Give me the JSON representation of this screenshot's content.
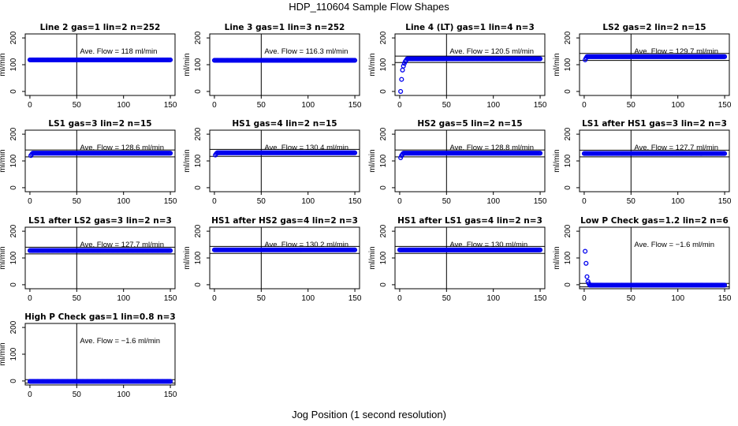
{
  "title": "HDP_110604  Sample Flow Shapes",
  "xlabel": "Jog Position (1 second resolution)",
  "ylabel": "ml/min",
  "colors": {
    "points": "#0000ee",
    "axes": "#000000"
  },
  "chart_data": [
    {
      "type": "scatter",
      "title": "Line 2 gas=1 lin=2 n=252",
      "annotation": "Ave. Flow =  118  ml/min",
      "ylim": [
        -15,
        215
      ],
      "xlim": [
        -5,
        155
      ],
      "yticks": [
        0,
        100,
        200
      ],
      "xticks": [
        0,
        50,
        100,
        150
      ],
      "vline": 50,
      "hlines": [],
      "series": [
        {
          "x_range": [
            0,
            150
          ],
          "y": 118,
          "startup": []
        }
      ]
    },
    {
      "type": "scatter",
      "title": "Line 3 gas=1 lin=3 n=252",
      "annotation": "Ave. Flow =  116.3  ml/min",
      "ylim": [
        -15,
        215
      ],
      "xlim": [
        -5,
        155
      ],
      "yticks": [
        0,
        100,
        200
      ],
      "xticks": [
        0,
        50,
        100,
        150
      ],
      "vline": 50,
      "hlines": [],
      "series": [
        {
          "x_range": [
            0,
            150
          ],
          "y": 116.3,
          "startup": []
        }
      ]
    },
    {
      "type": "scatter",
      "title": "Line 4 (LT) gas=1 lin=4 n=3",
      "annotation": "Ave. Flow =  120.5  ml/min",
      "ylim": [
        -15,
        215
      ],
      "xlim": [
        -5,
        155
      ],
      "yticks": [
        0,
        100,
        200
      ],
      "xticks": [
        0,
        50,
        100,
        150
      ],
      "vline": 50,
      "hlines": [
        132,
        108
      ],
      "series": [
        {
          "x_range": [
            8,
            150
          ],
          "y": 122,
          "startup": [
            [
              1,
              0
            ],
            [
              2,
              45
            ],
            [
              3,
              80
            ],
            [
              4,
              95
            ],
            [
              5,
              105
            ],
            [
              6,
              112
            ],
            [
              7,
              117
            ]
          ]
        }
      ]
    },
    {
      "type": "scatter",
      "title": "LS2 gas=2 lin=2 n=15",
      "annotation": "Ave. Flow =  129.7  ml/min",
      "ylim": [
        -15,
        215
      ],
      "xlim": [
        -5,
        155
      ],
      "yticks": [
        0,
        100,
        200
      ],
      "xticks": [
        0,
        50,
        100,
        150
      ],
      "vline": 50,
      "hlines": [
        142,
        116
      ],
      "series": [
        {
          "x_range": [
            3,
            150
          ],
          "y": 130,
          "startup": [
            [
              1,
              118
            ],
            [
              2,
              125
            ]
          ]
        }
      ]
    },
    {
      "type": "scatter",
      "title": "LS1 gas=3 lin=2 n=15",
      "annotation": "Ave. Flow =  128.6  ml/min",
      "ylim": [
        -15,
        215
      ],
      "xlim": [
        -5,
        155
      ],
      "yticks": [
        0,
        100,
        200
      ],
      "xticks": [
        0,
        50,
        100,
        150
      ],
      "vline": 50,
      "hlines": [
        141,
        115
      ],
      "series": [
        {
          "x_range": [
            3,
            150
          ],
          "y": 129,
          "startup": [
            [
              1,
              120
            ],
            [
              2,
              125
            ]
          ]
        }
      ]
    },
    {
      "type": "scatter",
      "title": "HS1 gas=4 lin=2 n=15",
      "annotation": "Ave. Flow =  130.4  ml/min",
      "ylim": [
        -15,
        215
      ],
      "xlim": [
        -5,
        155
      ],
      "yticks": [
        0,
        100,
        200
      ],
      "xticks": [
        0,
        50,
        100,
        150
      ],
      "vline": 50,
      "hlines": [
        143,
        117
      ],
      "series": [
        {
          "x_range": [
            3,
            150
          ],
          "y": 130.5,
          "startup": [
            [
              1,
              122
            ],
            [
              2,
              127
            ]
          ]
        }
      ]
    },
    {
      "type": "scatter",
      "title": "HS2 gas=5 lin=2 n=15",
      "annotation": "Ave. Flow =  128.8  ml/min",
      "ylim": [
        -15,
        215
      ],
      "xlim": [
        -5,
        155
      ],
      "yticks": [
        0,
        100,
        200
      ],
      "xticks": [
        0,
        50,
        100,
        150
      ],
      "vline": 50,
      "hlines": [
        141,
        115
      ],
      "series": [
        {
          "x_range": [
            4,
            150
          ],
          "y": 129,
          "startup": [
            [
              1,
              112
            ],
            [
              2,
              120
            ],
            [
              3,
              125
            ]
          ]
        }
      ]
    },
    {
      "type": "scatter",
      "title": "LS1 after HS1 gas=3 lin=2 n=3",
      "annotation": "Ave. Flow =  127.7  ml/min",
      "ylim": [
        -15,
        215
      ],
      "xlim": [
        -5,
        155
      ],
      "yticks": [
        0,
        100,
        200
      ],
      "xticks": [
        0,
        50,
        100,
        150
      ],
      "vline": 50,
      "hlines": [
        140,
        115
      ],
      "series": [
        {
          "x_range": [
            0,
            150
          ],
          "y": 127.7,
          "startup": []
        }
      ]
    },
    {
      "type": "scatter",
      "title": "LS1 after LS2 gas=3 lin=2 n=3",
      "annotation": "Ave. Flow =  127.7  ml/min",
      "ylim": [
        -15,
        215
      ],
      "xlim": [
        -5,
        155
      ],
      "yticks": [
        0,
        100,
        200
      ],
      "xticks": [
        0,
        50,
        100,
        150
      ],
      "vline": 50,
      "hlines": [
        140,
        115
      ],
      "series": [
        {
          "x_range": [
            0,
            150
          ],
          "y": 127.7,
          "startup": []
        }
      ]
    },
    {
      "type": "scatter",
      "title": "HS1 after HS2 gas=4 lin=2 n=3",
      "annotation": "Ave. Flow =  130.2  ml/min",
      "ylim": [
        -15,
        215
      ],
      "xlim": [
        -5,
        155
      ],
      "yticks": [
        0,
        100,
        200
      ],
      "xticks": [
        0,
        50,
        100,
        150
      ],
      "vline": 50,
      "hlines": [
        143,
        117
      ],
      "series": [
        {
          "x_range": [
            0,
            150
          ],
          "y": 130.2,
          "startup": []
        }
      ]
    },
    {
      "type": "scatter",
      "title": "HS1 after LS1 gas=4 lin=2 n=3",
      "annotation": "Ave. Flow =  130  ml/min",
      "ylim": [
        -15,
        215
      ],
      "xlim": [
        -5,
        155
      ],
      "yticks": [
        0,
        100,
        200
      ],
      "xticks": [
        0,
        50,
        100,
        150
      ],
      "vline": 50,
      "hlines": [
        143,
        117
      ],
      "series": [
        {
          "x_range": [
            0,
            150
          ],
          "y": 130,
          "startup": []
        }
      ]
    },
    {
      "type": "scatter",
      "title": "Low P Check gas=1.2 lin=2 n=6",
      "annotation": "Ave. Flow =  −1.6  ml/min",
      "ylim": [
        -15,
        215
      ],
      "xlim": [
        -5,
        155
      ],
      "yticks": [
        0,
        100,
        200
      ],
      "xticks": [
        0,
        50,
        100,
        150
      ],
      "vline": 50,
      "hlines": [
        5,
        -8
      ],
      "series": [
        {
          "x_range": [
            6,
            150
          ],
          "y": -1.6,
          "startup": [
            [
              1,
              125
            ],
            [
              2,
              80
            ],
            [
              3,
              30
            ],
            [
              4,
              12
            ],
            [
              5,
              4
            ]
          ]
        }
      ]
    },
    {
      "type": "scatter",
      "title": "High P Check gas=1 lin=0.8 n=3",
      "annotation": "Ave. Flow =  −1.6  ml/min",
      "ylim": [
        -15,
        215
      ],
      "xlim": [
        -5,
        155
      ],
      "yticks": [
        0,
        100,
        200
      ],
      "xticks": [
        0,
        50,
        100,
        150
      ],
      "vline": 50,
      "hlines": [
        5,
        -8
      ],
      "series": [
        {
          "x_range": [
            0,
            150
          ],
          "y": -1.6,
          "startup": []
        }
      ]
    }
  ]
}
